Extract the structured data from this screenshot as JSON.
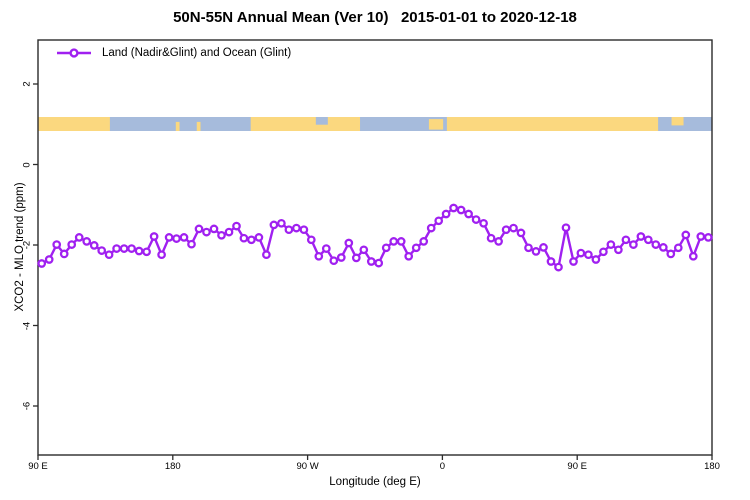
{
  "title": "50N-55N Annual Mean (Ver 10)   2015-01-01 to 2020-12-18",
  "legend": {
    "label": "Land (Nadir&Glint) and Ocean (Glint)",
    "marker": "open-circle",
    "line_color": "#A020F0"
  },
  "axes": {
    "x": {
      "label": "Longitude (deg E)",
      "ticks": [
        {
          "lon": 90,
          "label": "90 E"
        },
        {
          "lon": 180,
          "label": "180"
        },
        {
          "lon": 270,
          "label": "90 W"
        },
        {
          "lon": 360,
          "label": "0"
        },
        {
          "lon": 450,
          "label": "90 E"
        },
        {
          "lon": 540,
          "label": "180"
        }
      ]
    },
    "y": {
      "label": "XCO2 - MLO trend (ppm)",
      "ticks": [
        2,
        0,
        -2,
        -4,
        -6
      ]
    }
  },
  "map_strip": {
    "description": "world land/ocean band for latitude 50N-55N drawn near y=+1",
    "ocean_color": "#A6BBDC",
    "land_color": "#FBD87F",
    "band_center_value": 1.0,
    "land_segments": [
      {
        "lon": [
          90,
          138
        ],
        "frac": [
          0,
          1
        ]
      },
      {
        "lon": [
          182,
          184.5
        ],
        "frac": [
          0.35,
          1
        ]
      },
      {
        "lon": [
          196,
          198.5
        ],
        "frac": [
          0.35,
          1
        ]
      },
      {
        "lon": [
          232,
          305
        ],
        "frac": [
          0,
          1
        ]
      },
      {
        "lon": [
          351,
          360.5
        ],
        "frac": [
          0.15,
          0.9
        ]
      },
      {
        "lon": [
          363,
          504
        ],
        "frac": [
          0,
          1
        ]
      },
      {
        "lon": [
          513,
          521
        ],
        "frac": [
          0,
          0.6
        ]
      }
    ],
    "ocean_notches": [
      {
        "lon": [
          275.5,
          283.5
        ],
        "frac": [
          0,
          0.55
        ]
      }
    ]
  },
  "chart_data": {
    "type": "line",
    "title": "50N-55N Annual Mean (Ver 10)   2015-01-01 to 2020-12-18",
    "xlabel": "Longitude (deg E)",
    "ylabel": "XCO2 - MLO trend (ppm)",
    "x_axis_note": "x runs eastward from 90E wrapping the globe: 90E,180,90W,0,90E,180 (plot deg 90..540)",
    "xlim": [
      90,
      540
    ],
    "ylim": [
      -7.3,
      3.1
    ],
    "y_ticks": [
      2,
      0,
      -2,
      -4,
      -6
    ],
    "x_tick_positions": [
      90,
      180,
      270,
      360,
      450,
      540
    ],
    "x_tick_labels": [
      "90 E",
      "180",
      "90 W",
      "0",
      "90 E",
      "180"
    ],
    "grid": false,
    "legend_position": "top-left-inside",
    "series": [
      {
        "name": "Land (Nadir&Glint) and Ocean (Glint)",
        "color": "#A020F0",
        "marker": "open-circle",
        "x_start_deg": 92.5,
        "x_step_deg": 5,
        "values": [
          -2.46,
          -2.36,
          -1.99,
          -2.22,
          -1.99,
          -1.81,
          -1.91,
          -2.01,
          -2.14,
          -2.24,
          -2.09,
          -2.09,
          -2.09,
          -2.15,
          -2.17,
          -1.79,
          -2.24,
          -1.81,
          -1.84,
          -1.81,
          -1.98,
          -1.6,
          -1.68,
          -1.6,
          -1.76,
          -1.68,
          -1.53,
          -1.83,
          -1.87,
          -1.81,
          -2.24,
          -1.5,
          -1.46,
          -1.62,
          -1.58,
          -1.62,
          -1.87,
          -2.28,
          -2.09,
          -2.39,
          -2.31,
          -1.95,
          -2.32,
          -2.12,
          -2.41,
          -2.45,
          -2.07,
          -1.91,
          -1.91,
          -2.28,
          -2.07,
          -1.91,
          -1.58,
          -1.4,
          -1.23,
          -1.08,
          -1.13,
          -1.23,
          -1.37,
          -1.46,
          -1.83,
          -1.91,
          -1.62,
          -1.58,
          -1.7,
          -2.07,
          -2.16,
          -2.06,
          -2.41,
          -2.55,
          -1.57,
          -2.41,
          -2.2,
          -2.24,
          -2.36,
          -2.17,
          -1.99,
          -2.12,
          -1.87,
          -1.99,
          -1.79,
          -1.87,
          -1.99,
          -2.06,
          -2.22,
          -2.07,
          -1.75,
          -2.28,
          -1.79,
          -1.81
        ]
      }
    ]
  }
}
